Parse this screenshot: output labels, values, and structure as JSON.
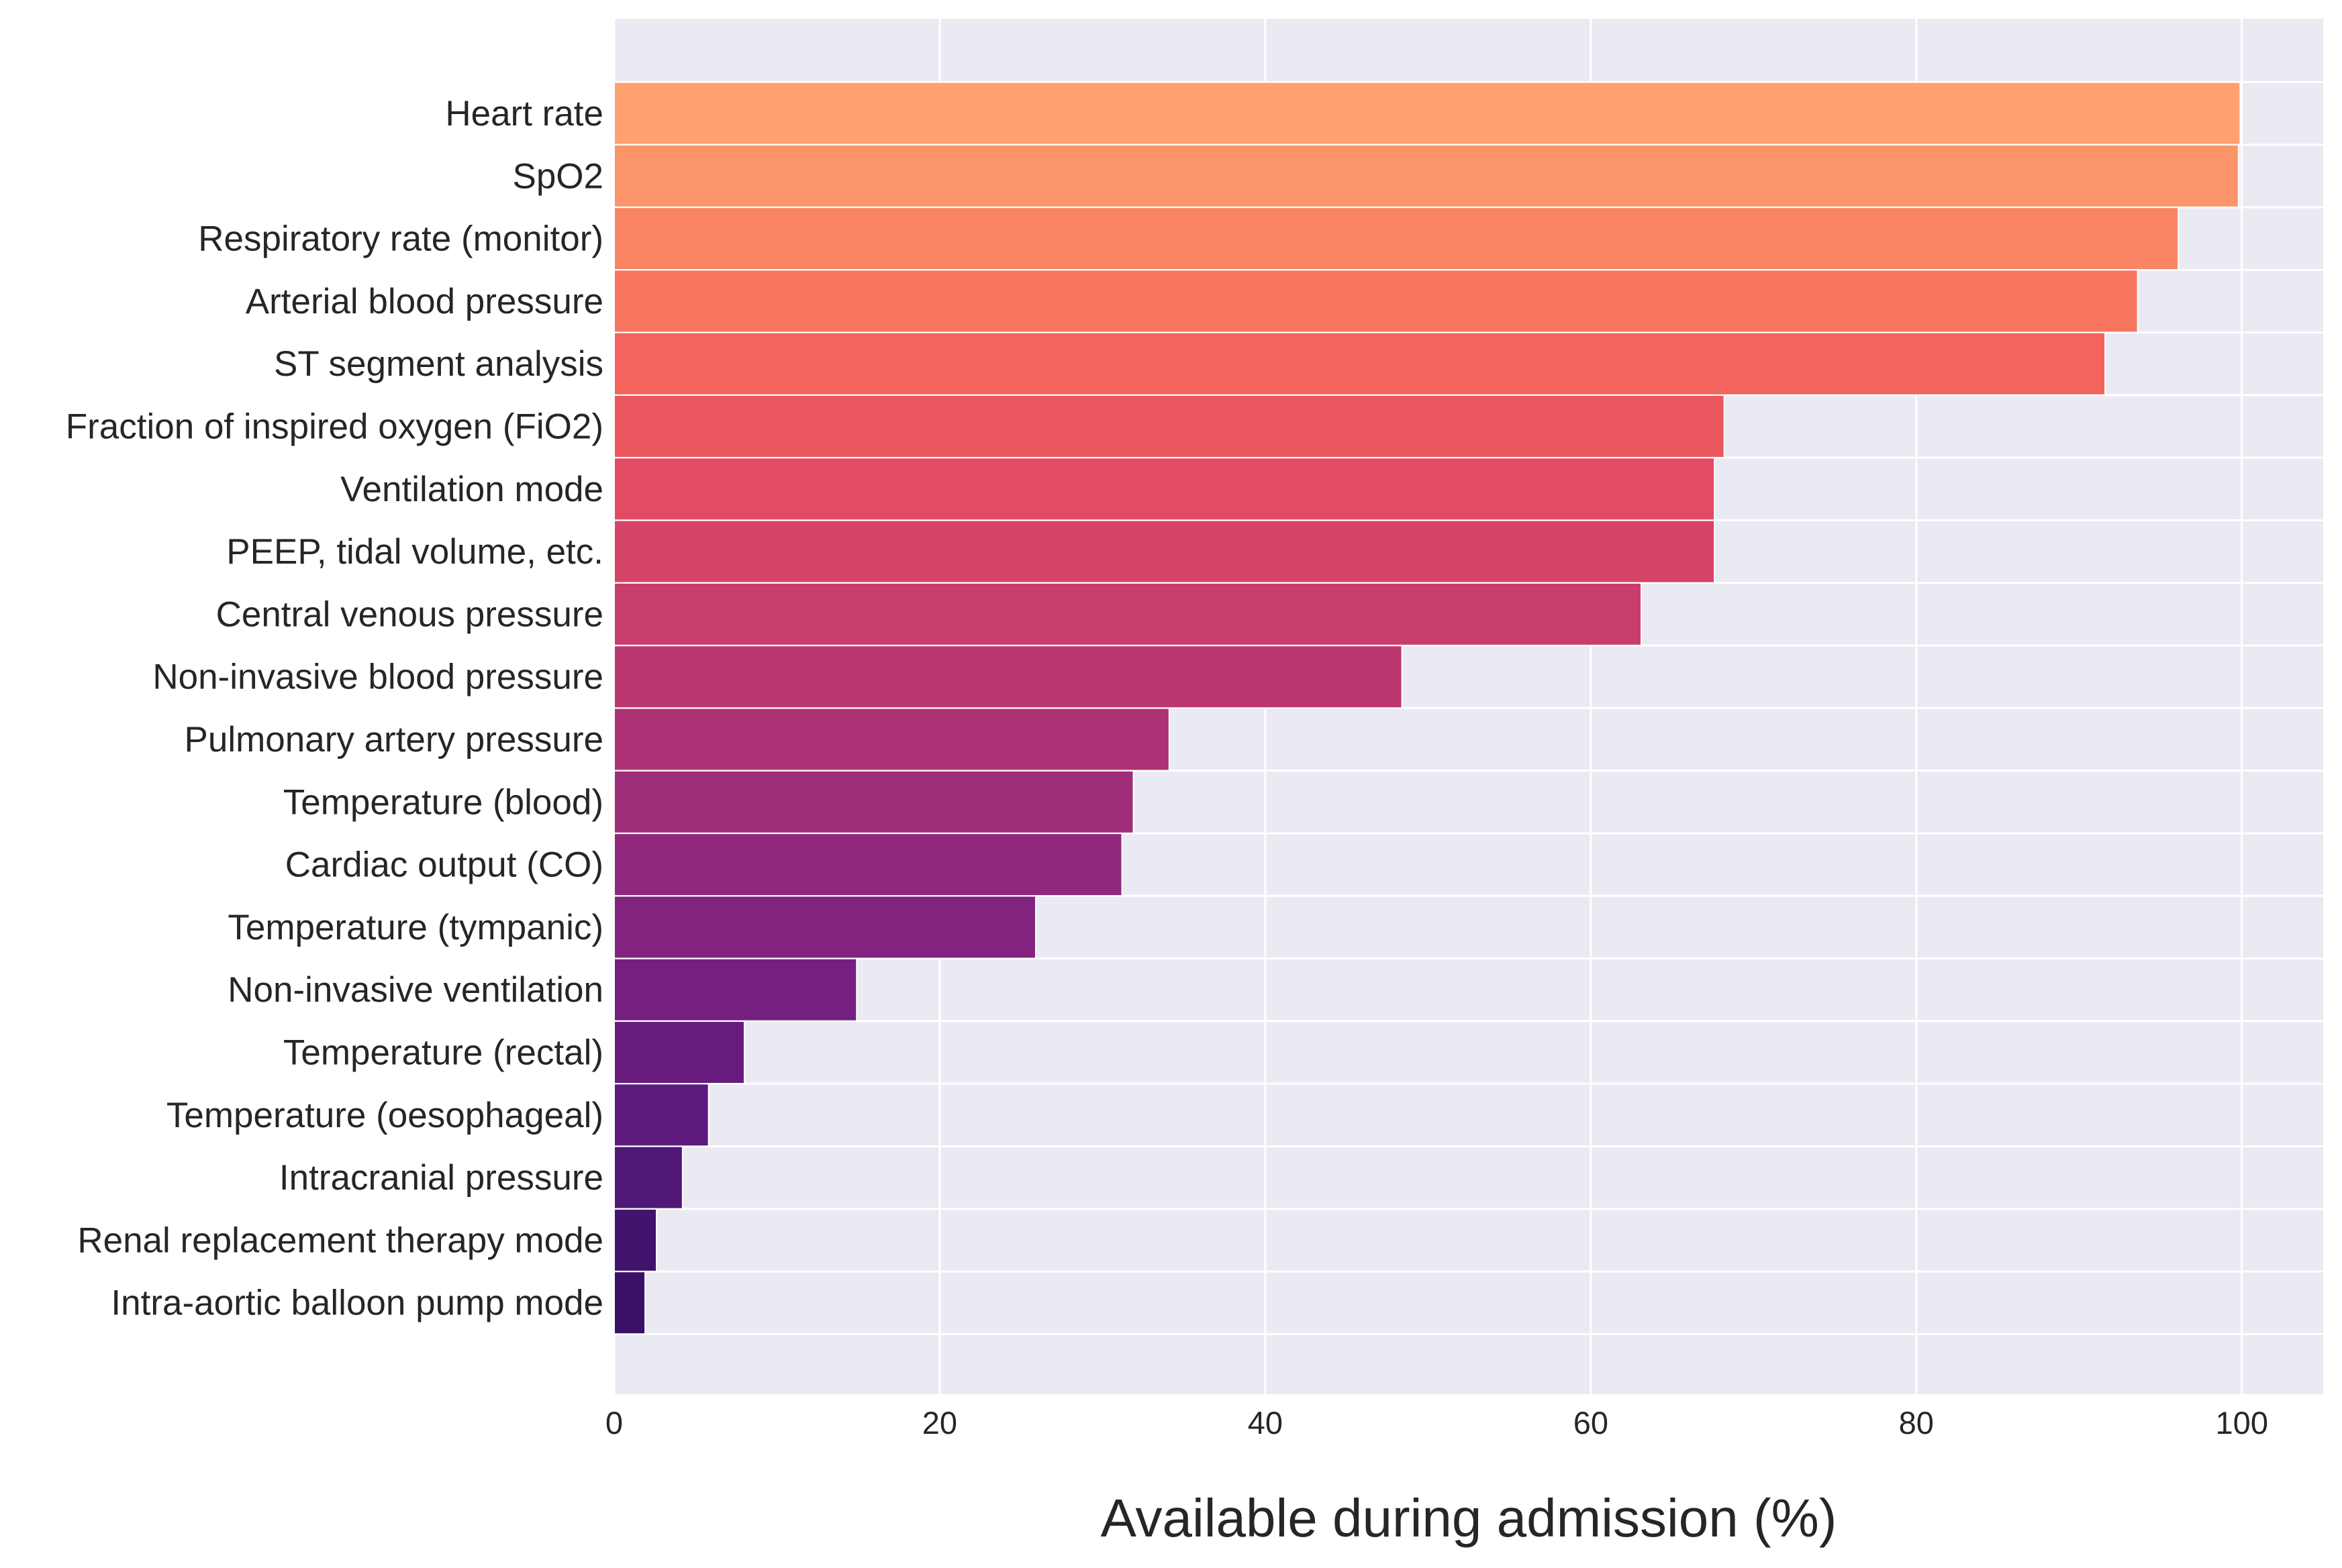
{
  "chart_data": {
    "type": "bar",
    "orientation": "horizontal",
    "title": "",
    "xlabel": "Available during admission (%)",
    "ylabel": "",
    "xlim": [
      0,
      105
    ],
    "xticks": [
      0,
      20,
      40,
      60,
      80,
      100
    ],
    "grid": true,
    "categories": [
      "Heart rate",
      "SpO2",
      "Respiratory rate (monitor)",
      "Arterial blood pressure",
      "ST segment analysis",
      "Fraction of inspired oxygen (FiO2)",
      "Ventilation mode",
      "PEEP, tidal volume, etc.",
      "Central venous pressure",
      "Non-invasive blood pressure",
      "Pulmonary artery pressure",
      "Temperature (blood)",
      "Cardiac output (CO)",
      "Temperature (tympanic)",
      "Non-invasive ventilation",
      "Temperature (rectal)",
      "Temperature (oesophageal)",
      "Intracranial pressure",
      "Renal replacement therapy mode",
      "Intra-aortic balloon pump mode"
    ],
    "values": [
      99.9,
      99.8,
      96.1,
      93.6,
      91.6,
      68.2,
      67.6,
      67.6,
      63.1,
      48.4,
      34.1,
      31.9,
      31.2,
      25.9,
      14.9,
      8.0,
      5.8,
      4.2,
      2.6,
      1.9
    ],
    "colors": [
      "#fea16e",
      "#fc9469",
      "#fa8564",
      "#f7745f",
      "#f2645c",
      "#ea575f",
      "#e14c63",
      "#d64467",
      "#c93d6c",
      "#bb3770",
      "#ad3275",
      "#9e2d79",
      "#90287c",
      "#82237f",
      "#752080",
      "#671c7e",
      "#5c1a7c",
      "#4f1776",
      "#42136d",
      "#3a1165"
    ]
  }
}
